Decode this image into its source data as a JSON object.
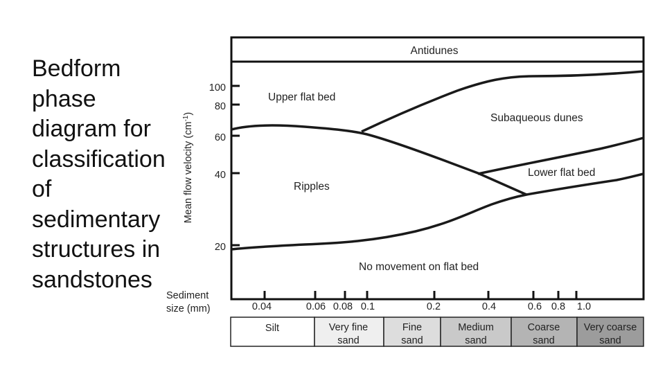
{
  "slide": {
    "title_lines": [
      "Bedform",
      "phase",
      "diagram for",
      "classification",
      "of",
      "sedimentary",
      "structures in",
      "sandstones"
    ]
  },
  "diagram": {
    "antidunes_label": "Antidunes",
    "regions": {
      "upper_flat_bed": "Upper flat bed",
      "subaqueous_dunes": "Subaqueous dunes",
      "lower_flat_bed": "Lower flat bed",
      "ripples": "Ripples",
      "no_movement": "No movement on flat bed"
    },
    "y_axis": {
      "label": "Mean flow velocity (cm",
      "label_sup": "-1",
      "label_close": ")",
      "ticks": [
        "100",
        "80",
        "60",
        "40",
        "20"
      ]
    },
    "x_axis": {
      "label_line1": "Sediment",
      "label_line2": "size (mm)",
      "ticks": [
        "0.04",
        "0.06",
        "0.08",
        "0.1",
        "0.2",
        "0.4",
        "0.6",
        "0.8",
        "1.0"
      ]
    },
    "size_classes": [
      {
        "line1": "Silt",
        "line2": "",
        "color": "#ffffff"
      },
      {
        "line1": "Very fine",
        "line2": "sand",
        "color": "#efefef"
      },
      {
        "line1": "Fine",
        "line2": "sand",
        "color": "#dddddd"
      },
      {
        "line1": "Medium",
        "line2": "sand",
        "color": "#c9c9c9"
      },
      {
        "line1": "Coarse",
        "line2": "sand",
        "color": "#b4b4b4"
      },
      {
        "line1": "Very coarse",
        "line2": "sand",
        "color": "#9c9c9c"
      }
    ]
  }
}
